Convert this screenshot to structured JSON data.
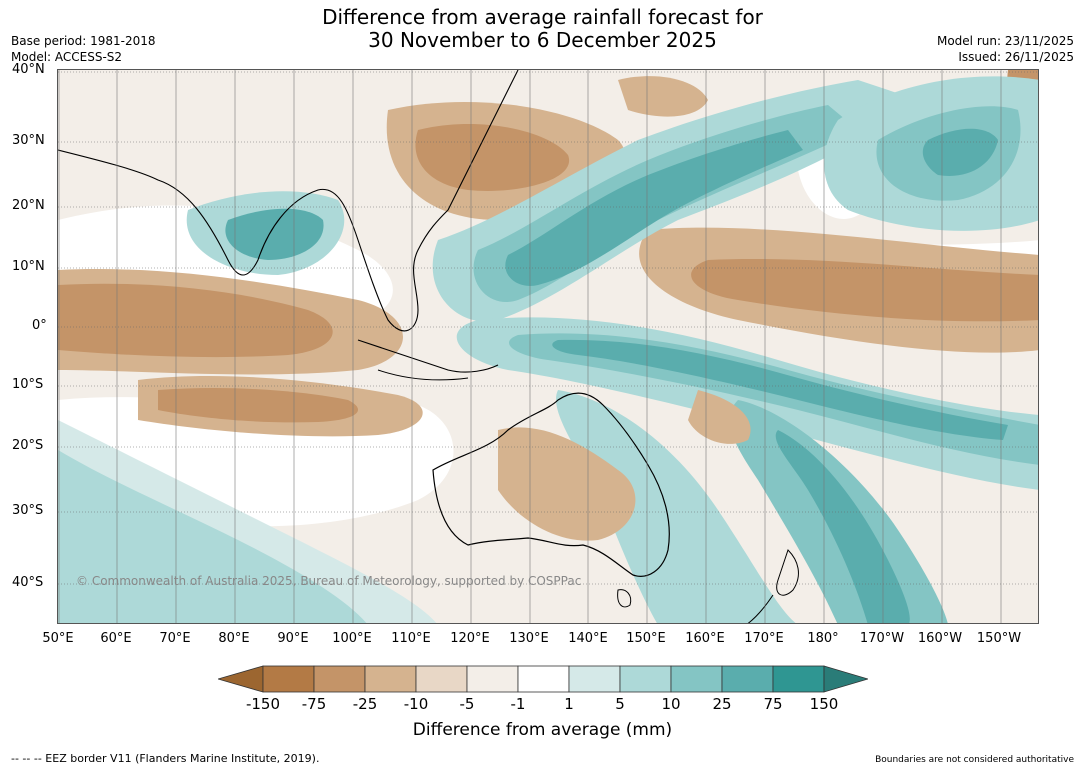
{
  "title": {
    "line1": "Difference from average rainfall forecast for",
    "line2": "30 November to 6 December 2025"
  },
  "meta": {
    "base_period": "Base period: 1981-2018",
    "model": "Model: ACCESS-S2",
    "model_run": "Model run: 23/11/2025",
    "issued": "Issued: 26/11/2025"
  },
  "map": {
    "latitudes": [
      "40°N",
      "30°N",
      "20°N",
      "10°N",
      "0°",
      "10°S",
      "20°S",
      "30°S",
      "40°S"
    ],
    "longitudes": [
      "50°E",
      "60°E",
      "70°E",
      "80°E",
      "90°E",
      "100°E",
      "110°E",
      "120°E",
      "130°E",
      "140°E",
      "150°E",
      "160°E",
      "170°E",
      "180°",
      "170°W",
      "160°W",
      "150°W"
    ],
    "copyright": "© Commonwealth of Australia 2025, Bureau of Meteorology, supported by COSPPac"
  },
  "colorbar": {
    "ticks": [
      "-150",
      "-75",
      "-25",
      "-10",
      "-5",
      "-1",
      "1",
      "5",
      "10",
      "25",
      "75",
      "150"
    ],
    "colors": [
      "#9c6630",
      "#b37a45",
      "#c49468",
      "#d5b38f",
      "#e8d7c6",
      "#f3eee8",
      "#ffffff",
      "#d5e9e8",
      "#add9d8",
      "#84c5c4",
      "#5aadad",
      "#2f9692",
      "#2a7c78"
    ],
    "title": "Difference from average (mm)"
  },
  "footer": {
    "left": "--  --  -- EEZ border V11 (Flanders Marine Institute, 2019).",
    "right": "Boundaries are not considered authoritative"
  }
}
